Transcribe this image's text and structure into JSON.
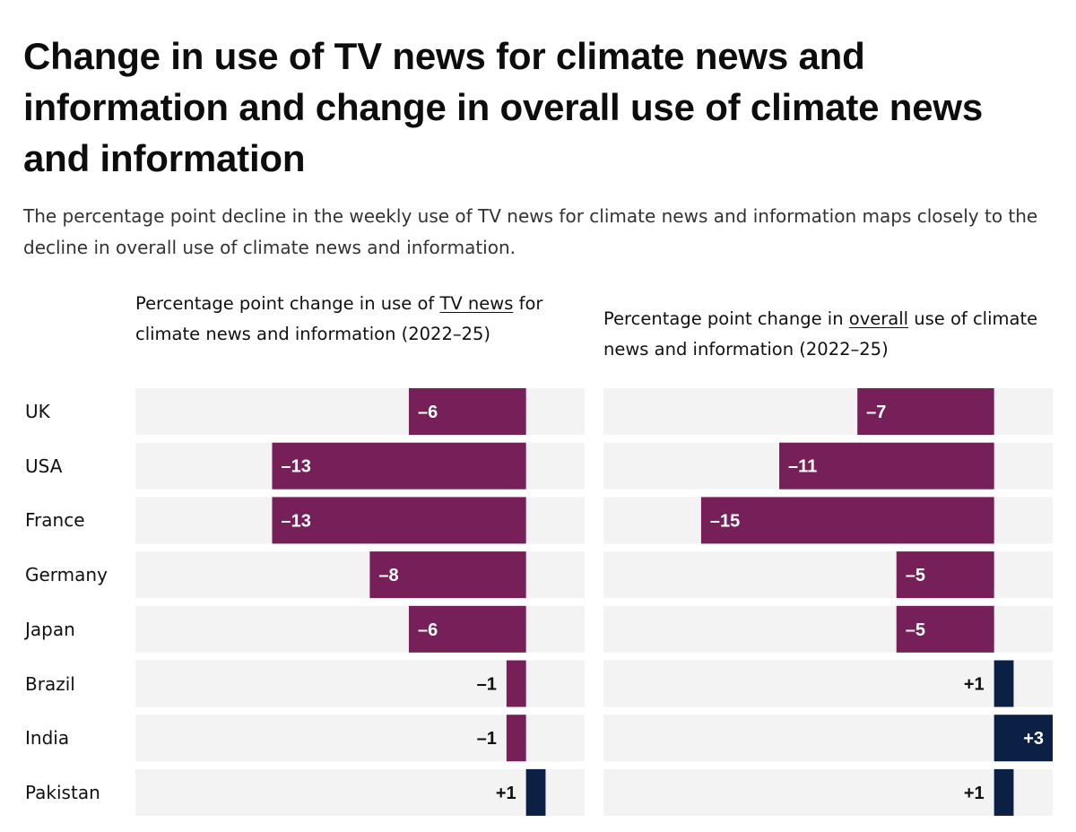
{
  "header": {
    "title": "Change in use of TV news for climate news and information and change in overall use of climate news and information",
    "subtitle": "The percentage point decline in the weekly use of TV news for climate news and information maps closely to the decline in overall use of climate news and information."
  },
  "colors": {
    "negative": "#761f59",
    "positive": "#0c1f45",
    "track": "#f3f3f3",
    "label_inside": "#ffffff",
    "label_outside": "#111111"
  },
  "chart_data": [
    {
      "type": "bar",
      "orientation": "horizontal",
      "title_parts": [
        "Percentage point change in use of ",
        "TV news",
        " for climate news and information (2022–25)"
      ],
      "title_underlined_part": "TV news",
      "categories": [
        "UK",
        "USA",
        "France",
        "Germany",
        "Japan",
        "Brazil",
        "India",
        "Pakistan"
      ],
      "values": [
        -6,
        -13,
        -13,
        -8,
        -6,
        -1,
        -1,
        1
      ],
      "labels": [
        "–6",
        "–13",
        "–13",
        "–8",
        "–6",
        "–1",
        "–1",
        "+1"
      ],
      "xlim": [
        -20,
        3
      ],
      "grid": false,
      "unit": "percentage points"
    },
    {
      "type": "bar",
      "orientation": "horizontal",
      "title_parts": [
        "Percentage point change in ",
        "overall",
        " use of climate news and information (2022–25)"
      ],
      "title_underlined_part": "overall",
      "categories": [
        "UK",
        "USA",
        "France",
        "Germany",
        "Japan",
        "Brazil",
        "India",
        "Pakistan"
      ],
      "values": [
        -7,
        -11,
        -15,
        -5,
        -5,
        1,
        3,
        1
      ],
      "labels": [
        "–7",
        "–11",
        "–15",
        "–5",
        "–5",
        "+1",
        "+3",
        "+1"
      ],
      "xlim": [
        -20,
        3
      ],
      "grid": false,
      "unit": "percentage points"
    }
  ]
}
